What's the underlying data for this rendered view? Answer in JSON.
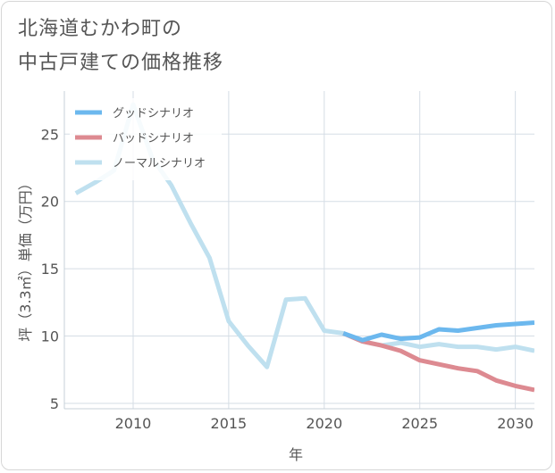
{
  "title_lines": [
    "北海道むかわ町の",
    "中古戸建ての価格推移"
  ],
  "chart_data": {
    "type": "line",
    "title": "北海道むかわ町の中古戸建ての価格推移",
    "xlabel": "年",
    "ylabel": "坪（3.3㎡）単価（万円）",
    "xlim": [
      2006.4,
      2031
    ],
    "ylim": [
      4.6,
      28.2
    ],
    "x_ticks": [
      2010,
      2015,
      2020,
      2025,
      2030
    ],
    "y_ticks": [
      5,
      10,
      15,
      20,
      25
    ],
    "grid": true,
    "legend_position": "top-left",
    "series": [
      {
        "name": "グッドシナリオ",
        "color": "#6cb8ee",
        "x": [
          2021,
          2022,
          2023,
          2024,
          2025,
          2026,
          2027,
          2028,
          2029,
          2030,
          2031
        ],
        "values": [
          10.2,
          9.7,
          10.1,
          9.8,
          9.9,
          10.5,
          10.4,
          10.6,
          10.8,
          10.9,
          11.0
        ]
      },
      {
        "name": "バッドシナリオ",
        "color": "#dd8a91",
        "x": [
          2021,
          2022,
          2023,
          2024,
          2025,
          2026,
          2027,
          2028,
          2029,
          2030,
          2031
        ],
        "values": [
          10.2,
          9.6,
          9.3,
          8.9,
          8.2,
          7.9,
          7.6,
          7.4,
          6.7,
          6.3,
          6.0
        ]
      },
      {
        "name": "ノーマルシナリオ",
        "color": "#bfe0ef",
        "x": [
          2007,
          2008,
          2009,
          2010,
          2011,
          2012,
          2013,
          2014,
          2015,
          2016,
          2017,
          2018,
          2019,
          2020,
          2021,
          2022,
          2023,
          2024,
          2025,
          2026,
          2027,
          2028,
          2029,
          2030,
          2031
        ],
        "values": [
          20.6,
          21.4,
          22.3,
          27.2,
          23.2,
          21.2,
          18.4,
          15.8,
          11.1,
          9.3,
          7.7,
          12.7,
          12.8,
          10.4,
          10.2,
          9.6,
          9.3,
          9.5,
          9.2,
          9.4,
          9.2,
          9.2,
          9.0,
          9.2,
          8.9
        ]
      }
    ]
  }
}
